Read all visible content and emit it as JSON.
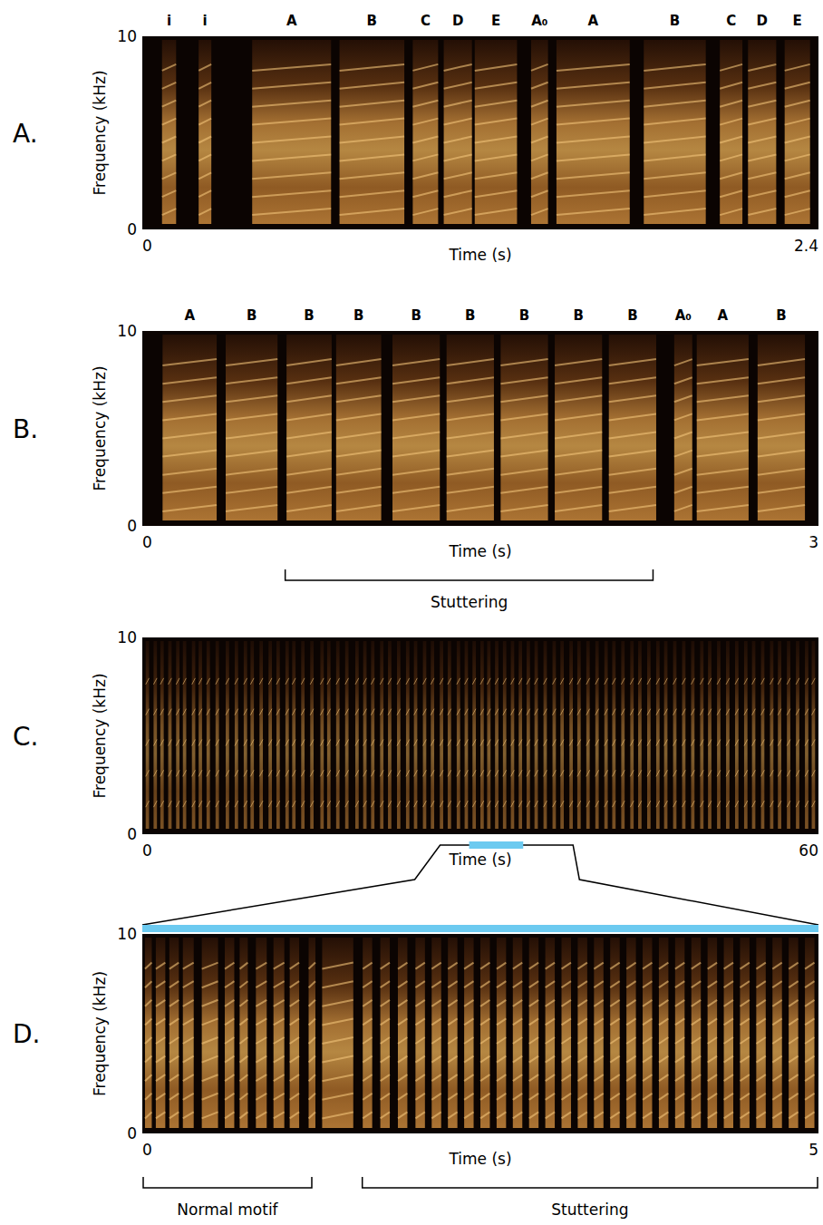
{
  "chart_data": [
    {
      "type": "spectrogram",
      "panel": "A.",
      "x_label": "Time (s)",
      "y_label": "Frequency (kHz)",
      "xlim": [
        0,
        2.4
      ],
      "ylim": [
        0,
        10
      ],
      "xticks": [
        0,
        2.4
      ],
      "yticks": [
        0,
        10
      ],
      "segments": [
        {
          "label": "i",
          "start": 0.07,
          "end": 0.12
        },
        {
          "label": "i",
          "start": 0.2,
          "end": 0.245
        },
        {
          "label": "A",
          "start": 0.39,
          "end": 0.67
        },
        {
          "label": "B",
          "start": 0.7,
          "end": 0.93
        },
        {
          "label": "C",
          "start": 0.96,
          "end": 1.05
        },
        {
          "label": "D",
          "start": 1.07,
          "end": 1.17
        },
        {
          "label": "E",
          "start": 1.18,
          "end": 1.33
        },
        {
          "label": "A₀",
          "start": 1.38,
          "end": 1.44
        },
        {
          "label": "A",
          "start": 1.47,
          "end": 1.73
        },
        {
          "label": "B",
          "start": 1.78,
          "end": 2.0
        },
        {
          "label": "C",
          "start": 2.05,
          "end": 2.13
        },
        {
          "label": "D",
          "start": 2.15,
          "end": 2.25
        },
        {
          "label": "E",
          "start": 2.28,
          "end": 2.37
        }
      ]
    },
    {
      "type": "spectrogram",
      "panel": "B.",
      "x_label": "Time (s)",
      "y_label": "Frequency (kHz)",
      "xlim": [
        0,
        3
      ],
      "ylim": [
        0,
        10
      ],
      "xticks": [
        0,
        3
      ],
      "yticks": [
        0,
        10
      ],
      "segments": [
        {
          "label": "A",
          "start": 0.09,
          "end": 0.33
        },
        {
          "label": "B",
          "start": 0.37,
          "end": 0.6
        },
        {
          "label": "B",
          "start": 0.64,
          "end": 0.84
        },
        {
          "label": "B",
          "start": 0.86,
          "end": 1.06
        },
        {
          "label": "B",
          "start": 1.11,
          "end": 1.32
        },
        {
          "label": "B",
          "start": 1.35,
          "end": 1.56
        },
        {
          "label": "B",
          "start": 1.59,
          "end": 1.8
        },
        {
          "label": "B",
          "start": 1.83,
          "end": 2.04
        },
        {
          "label": "B",
          "start": 2.07,
          "end": 2.28
        },
        {
          "label": "A₀",
          "start": 2.36,
          "end": 2.44
        },
        {
          "label": "A",
          "start": 2.46,
          "end": 2.69
        },
        {
          "label": "B",
          "start": 2.73,
          "end": 2.94
        }
      ],
      "brackets": [
        {
          "label": "Stuttering",
          "start": 0.63,
          "end": 2.27
        }
      ]
    },
    {
      "type": "spectrogram",
      "panel": "C.",
      "x_label": "Time (s)",
      "y_label": "Frequency (kHz)",
      "xlim": [
        0,
        60
      ],
      "ylim": [
        0,
        10
      ],
      "xticks": [
        0,
        60
      ],
      "yticks": [
        0,
        10
      ],
      "segments": [
        {
          "start": 0.3,
          "end": 0.6
        },
        {
          "start": 1.0,
          "end": 1.3
        },
        {
          "start": 1.6,
          "end": 1.9
        },
        {
          "start": 2.3,
          "end": 2.6
        },
        {
          "start": 3.0,
          "end": 3.3
        },
        {
          "start": 3.6,
          "end": 3.9
        },
        {
          "start": 4.4,
          "end": 4.7
        },
        {
          "start": 5.0,
          "end": 5.3
        },
        {
          "start": 5.7,
          "end": 6.0
        },
        {
          "start": 6.5,
          "end": 6.8
        },
        {
          "start": 7.4,
          "end": 7.7
        },
        {
          "start": 8.2,
          "end": 8.5
        },
        {
          "start": 9.0,
          "end": 9.3
        },
        {
          "start": 9.6,
          "end": 9.9
        },
        {
          "start": 10.4,
          "end": 10.7
        },
        {
          "start": 11.2,
          "end": 11.5
        },
        {
          "start": 11.9,
          "end": 12.2
        },
        {
          "start": 12.7,
          "end": 13.0
        },
        {
          "start": 13.3,
          "end": 13.6
        },
        {
          "start": 14.1,
          "end": 14.4
        },
        {
          "start": 14.9,
          "end": 15.2
        },
        {
          "start": 15.8,
          "end": 16.1
        },
        {
          "start": 16.4,
          "end": 16.7
        },
        {
          "start": 17.2,
          "end": 17.5
        },
        {
          "start": 18.0,
          "end": 18.3
        },
        {
          "start": 18.9,
          "end": 19.2
        },
        {
          "start": 19.6,
          "end": 19.9
        },
        {
          "start": 20.3,
          "end": 20.6
        },
        {
          "start": 21.1,
          "end": 21.4
        },
        {
          "start": 21.8,
          "end": 22.1
        },
        {
          "start": 22.6,
          "end": 22.9
        },
        {
          "start": 23.4,
          "end": 23.7
        },
        {
          "start": 24.1,
          "end": 24.4
        },
        {
          "start": 24.9,
          "end": 25.2
        },
        {
          "start": 25.6,
          "end": 25.9
        },
        {
          "start": 26.4,
          "end": 26.7
        },
        {
          "start": 27.1,
          "end": 27.4
        },
        {
          "start": 27.9,
          "end": 28.2
        },
        {
          "start": 28.6,
          "end": 28.9
        },
        {
          "start": 29.3,
          "end": 29.6
        },
        {
          "start": 30.0,
          "end": 30.3
        },
        {
          "start": 30.6,
          "end": 30.9
        },
        {
          "start": 31.3,
          "end": 31.6
        },
        {
          "start": 32.0,
          "end": 32.3
        },
        {
          "start": 32.7,
          "end": 33.0
        },
        {
          "start": 33.4,
          "end": 33.7
        },
        {
          "start": 34.1,
          "end": 34.4
        },
        {
          "start": 34.8,
          "end": 35.1
        },
        {
          "start": 35.6,
          "end": 35.9
        },
        {
          "start": 36.4,
          "end": 36.7
        },
        {
          "start": 37.1,
          "end": 37.4
        },
        {
          "start": 37.9,
          "end": 38.2
        },
        {
          "start": 38.6,
          "end": 38.9
        },
        {
          "start": 39.4,
          "end": 39.7
        },
        {
          "start": 40.2,
          "end": 40.5
        },
        {
          "start": 41.0,
          "end": 41.3
        },
        {
          "start": 41.7,
          "end": 42.0
        },
        {
          "start": 42.5,
          "end": 42.8
        },
        {
          "start": 43.3,
          "end": 43.6
        },
        {
          "start": 44.0,
          "end": 44.3
        },
        {
          "start": 44.8,
          "end": 45.1
        },
        {
          "start": 45.6,
          "end": 45.9
        },
        {
          "start": 46.3,
          "end": 46.6
        },
        {
          "start": 47.1,
          "end": 47.4
        },
        {
          "start": 47.9,
          "end": 48.2
        },
        {
          "start": 48.7,
          "end": 49.0
        },
        {
          "start": 49.5,
          "end": 49.8
        },
        {
          "start": 50.2,
          "end": 50.5
        },
        {
          "start": 51.0,
          "end": 51.3
        },
        {
          "start": 51.8,
          "end": 52.1
        },
        {
          "start": 52.6,
          "end": 52.9
        },
        {
          "start": 53.4,
          "end": 53.7
        },
        {
          "start": 54.1,
          "end": 54.4
        },
        {
          "start": 54.9,
          "end": 55.2
        },
        {
          "start": 55.7,
          "end": 56.0
        },
        {
          "start": 56.4,
          "end": 56.7
        },
        {
          "start": 57.2,
          "end": 57.5
        },
        {
          "start": 58.0,
          "end": 58.3
        },
        {
          "start": 58.8,
          "end": 59.1
        },
        {
          "start": 59.4,
          "end": 59.7
        }
      ],
      "highlight": {
        "start": 29.0,
        "end": 33.8
      }
    },
    {
      "type": "spectrogram",
      "panel": "D.",
      "x_label": "Time (s)",
      "y_label": "Frequency (kHz)",
      "xlim": [
        0,
        5
      ],
      "ylim": [
        0,
        10
      ],
      "xticks": [
        0,
        5
      ],
      "yticks": [
        0,
        10
      ],
      "segments": [
        {
          "start": 0.02,
          "end": 0.07
        },
        {
          "start": 0.1,
          "end": 0.17
        },
        {
          "start": 0.2,
          "end": 0.27
        },
        {
          "start": 0.3,
          "end": 0.38
        },
        {
          "start": 0.44,
          "end": 0.56
        },
        {
          "start": 0.61,
          "end": 0.68
        },
        {
          "start": 0.72,
          "end": 0.78
        },
        {
          "start": 0.84,
          "end": 0.92
        },
        {
          "start": 0.97,
          "end": 1.05
        },
        {
          "start": 1.09,
          "end": 1.16
        },
        {
          "start": 1.23,
          "end": 1.28
        },
        {
          "start": 1.33,
          "end": 1.56
        },
        {
          "start": 1.63,
          "end": 1.7
        },
        {
          "start": 1.76,
          "end": 1.83
        },
        {
          "start": 1.89,
          "end": 1.96
        },
        {
          "start": 2.02,
          "end": 2.09
        },
        {
          "start": 2.14,
          "end": 2.21
        },
        {
          "start": 2.26,
          "end": 2.33
        },
        {
          "start": 2.38,
          "end": 2.45
        },
        {
          "start": 2.5,
          "end": 2.57
        },
        {
          "start": 2.62,
          "end": 2.69
        },
        {
          "start": 2.74,
          "end": 2.81
        },
        {
          "start": 2.86,
          "end": 2.93
        },
        {
          "start": 2.98,
          "end": 3.05
        },
        {
          "start": 3.1,
          "end": 3.17
        },
        {
          "start": 3.22,
          "end": 3.29
        },
        {
          "start": 3.34,
          "end": 3.41
        },
        {
          "start": 3.46,
          "end": 3.53
        },
        {
          "start": 3.58,
          "end": 3.65
        },
        {
          "start": 3.7,
          "end": 3.77
        },
        {
          "start": 3.82,
          "end": 3.89
        },
        {
          "start": 3.94,
          "end": 4.01
        },
        {
          "start": 4.06,
          "end": 4.13
        },
        {
          "start": 4.18,
          "end": 4.25
        },
        {
          "start": 4.3,
          "end": 4.37
        },
        {
          "start": 4.42,
          "end": 4.49
        },
        {
          "start": 4.54,
          "end": 4.61
        },
        {
          "start": 4.66,
          "end": 4.73
        },
        {
          "start": 4.78,
          "end": 4.85
        },
        {
          "start": 4.9,
          "end": 4.97
        }
      ],
      "brackets": [
        {
          "label": "Normal motif",
          "start": 0.0,
          "end": 1.26
        },
        {
          "label": "Stuttering",
          "start": 1.62,
          "end": 5.0
        }
      ]
    }
  ]
}
